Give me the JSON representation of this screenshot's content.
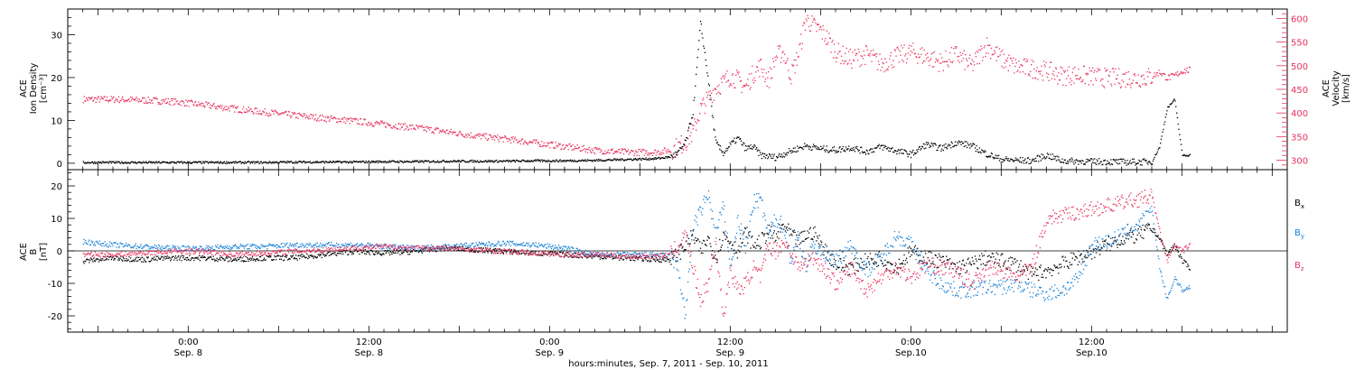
{
  "chart_data": [
    {
      "type": "scatter",
      "panel": "plasma",
      "left_axis": {
        "label_lines": [
          "ACE",
          "Ion Density",
          "[cm⁻³]"
        ],
        "ylim": [
          -1.5,
          36
        ],
        "ticks": [
          0,
          10,
          20,
          30
        ],
        "tick_labels": [
          "0",
          "10",
          "20",
          "30"
        ]
      },
      "right_axis": {
        "label_lines": [
          "ACE",
          "Velocity",
          "[km/s]"
        ],
        "ylim": [
          280,
          620
        ],
        "ticks": [
          300,
          350,
          400,
          450,
          500,
          550,
          600
        ],
        "tick_labels": [
          "300",
          "350",
          "400",
          "450",
          "500",
          "550",
          "600"
        ],
        "color": "#e8305f"
      },
      "series": [
        {
          "key": "density",
          "axis": "left",
          "color": "#000000",
          "x_hours": [
            -14,
            -10,
            -6,
            -2,
            2,
            6,
            10,
            14,
            18,
            22,
            26,
            30,
            34,
            38,
            42,
            46,
            50,
            54,
            58,
            62,
            64,
            65,
            66,
            67,
            68,
            69,
            70,
            71,
            72,
            73,
            74,
            75,
            76,
            78,
            80,
            82,
            84,
            86,
            88,
            90,
            92,
            94,
            96,
            98,
            100,
            102,
            104,
            106,
            108,
            110,
            112,
            114,
            116,
            118,
            120,
            122,
            124,
            126,
            128,
            129,
            130,
            131,
            132,
            133
          ],
          "values": [
            0.3,
            0.3,
            0.3,
            0.3,
            0.3,
            0.3,
            0.3,
            0.4,
            0.4,
            0.4,
            0.5,
            0.5,
            0.6,
            0.6,
            0.6,
            0.7,
            0.7,
            0.8,
            1.0,
            1.2,
            1.6,
            2.5,
            5,
            12,
            33,
            20,
            5,
            2.5,
            4.5,
            6,
            3.5,
            4,
            2,
            1.5,
            3,
            4.2,
            3.5,
            3.2,
            3.8,
            2.8,
            4,
            3,
            2.2,
            4.5,
            3.6,
            5,
            4.2,
            2.3,
            1.0,
            0.8,
            0.7,
            2,
            0.7,
            0.6,
            0.5,
            0.5,
            0.4,
            0.4,
            0.5,
            4,
            13,
            15,
            2,
            2
          ]
        },
        {
          "key": "velocity",
          "axis": "right",
          "color": "#e8305f",
          "x_hours": [
            -14,
            -10,
            -6,
            -2,
            2,
            6,
            10,
            14,
            18,
            22,
            26,
            30,
            34,
            38,
            42,
            46,
            50,
            54,
            58,
            62,
            64,
            65,
            66,
            67,
            68,
            69,
            70,
            71,
            72,
            73,
            74,
            75,
            76,
            77,
            78,
            79,
            80,
            81,
            82,
            83,
            84,
            85,
            86,
            88,
            90,
            92,
            94,
            96,
            98,
            100,
            102,
            104,
            106,
            108,
            110,
            112,
            114,
            116,
            118,
            120,
            122,
            124,
            126,
            128,
            129,
            130,
            131,
            132,
            133
          ],
          "values": [
            430,
            430,
            428,
            425,
            418,
            410,
            403,
            396,
            390,
            384,
            377,
            370,
            362,
            353,
            346,
            338,
            330,
            322,
            318,
            318,
            322,
            330,
            340,
            360,
            410,
            430,
            455,
            465,
            480,
            470,
            455,
            485,
            500,
            470,
            520,
            530,
            480,
            525,
            600,
            585,
            575,
            555,
            530,
            515,
            525,
            505,
            520,
            530,
            520,
            508,
            525,
            500,
            545,
            515,
            498,
            495,
            490,
            480,
            482,
            478,
            475,
            475,
            475,
            478,
            488,
            475,
            480,
            490,
            492
          ]
        }
      ]
    },
    {
      "type": "scatter",
      "panel": "magnetic field",
      "left_axis": {
        "label_lines": [
          "ACE",
          "B",
          "[nT]"
        ],
        "ylim": [
          -25,
          25
        ],
        "ticks": [
          -20,
          -10,
          0,
          10,
          20
        ],
        "tick_labels": [
          "-20",
          "-10",
          "0",
          "10",
          "20"
        ]
      },
      "series": [
        {
          "key": "Bx",
          "name": "Bx",
          "color": "#000000",
          "x_hours": [
            -14,
            -10,
            -6,
            -2,
            2,
            6,
            10,
            14,
            18,
            22,
            26,
            30,
            34,
            38,
            42,
            46,
            50,
            54,
            58,
            62,
            64,
            65,
            66,
            67,
            68,
            69,
            70,
            71,
            72,
            73,
            74,
            75,
            76,
            77,
            78,
            79,
            80,
            81,
            82,
            83,
            84,
            86,
            88,
            90,
            92,
            94,
            96,
            98,
            100,
            102,
            104,
            106,
            108,
            110,
            112,
            114,
            116,
            118,
            120,
            122,
            124,
            126,
            128,
            129,
            130,
            131,
            132,
            133
          ],
          "values": [
            -3,
            -2,
            -2.5,
            -2,
            -2,
            -2.5,
            -2,
            -2,
            -1,
            0,
            -0.5,
            0,
            1,
            0.5,
            0,
            -0.5,
            -1,
            -1.5,
            -2,
            -2.5,
            -2.5,
            -1,
            2,
            5,
            0,
            4,
            -2,
            5,
            3,
            0,
            6,
            2,
            3,
            6,
            4,
            8,
            5,
            3,
            5,
            6,
            2,
            -4,
            -5,
            -3,
            -2,
            -5,
            0,
            -2,
            -3,
            -5,
            -4,
            -2,
            -3,
            -4,
            -7,
            -6,
            -4,
            -2,
            0,
            2,
            4,
            5,
            7,
            4,
            -1,
            2,
            -3,
            -5
          ]
        },
        {
          "key": "By",
          "name": "By",
          "color": "#1a82d8",
          "x_hours": [
            -14,
            -10,
            -6,
            -2,
            2,
            6,
            10,
            14,
            18,
            22,
            26,
            30,
            34,
            38,
            42,
            46,
            50,
            54,
            58,
            62,
            64,
            65,
            66,
            67,
            68,
            69,
            70,
            71,
            72,
            73,
            74,
            75,
            76,
            77,
            78,
            79,
            80,
            81,
            82,
            83,
            84,
            86,
            88,
            90,
            92,
            94,
            96,
            98,
            100,
            102,
            104,
            106,
            108,
            110,
            112,
            114,
            116,
            118,
            120,
            122,
            124,
            126,
            128,
            129,
            130,
            131,
            132,
            133
          ],
          "values": [
            3,
            2,
            1.5,
            1,
            1,
            1.5,
            1.5,
            2,
            2,
            2,
            1.5,
            1,
            1.5,
            2,
            2.5,
            2,
            1,
            -1,
            -1,
            -1,
            -1.5,
            -5,
            -20,
            8,
            12,
            18,
            5,
            14,
            -5,
            10,
            0,
            15,
            16,
            5,
            10,
            8,
            -3,
            5,
            -5,
            2,
            0,
            -3,
            2,
            -6,
            -2,
            5,
            2,
            -6,
            -10,
            -12,
            -12,
            -11,
            -11,
            -10,
            -12,
            -13,
            -12,
            -9,
            2,
            3,
            5,
            8,
            12,
            -5,
            -15,
            -8,
            -12,
            -11
          ]
        },
        {
          "key": "Bz",
          "name": "Bz",
          "color": "#e8305f",
          "x_hours": [
            -14,
            -10,
            -6,
            -2,
            2,
            6,
            10,
            14,
            18,
            22,
            26,
            30,
            34,
            38,
            42,
            46,
            50,
            54,
            58,
            62,
            64,
            65,
            66,
            67,
            68,
            69,
            70,
            71,
            72,
            73,
            74,
            75,
            76,
            77,
            78,
            79,
            80,
            81,
            82,
            83,
            84,
            86,
            88,
            90,
            92,
            94,
            96,
            98,
            100,
            102,
            104,
            106,
            108,
            110,
            112,
            114,
            116,
            118,
            120,
            122,
            124,
            126,
            128,
            129,
            130,
            131,
            132,
            133
          ],
          "values": [
            -1,
            -1,
            -0.5,
            0,
            0,
            -1,
            -0.5,
            0,
            0.5,
            1,
            1.5,
            1,
            1,
            0.5,
            0,
            -0.5,
            -1,
            -1,
            -1.5,
            -1.5,
            -1,
            2,
            5,
            -5,
            -15,
            -10,
            3,
            -20,
            -6,
            -12,
            -10,
            -5,
            -8,
            2,
            0,
            3,
            0,
            -5,
            -3,
            -2,
            -4,
            -10,
            -5,
            -12,
            -8,
            -5,
            -8,
            -4,
            -5,
            -6,
            -10,
            -5,
            -6,
            -8,
            -5,
            10,
            11,
            12,
            13,
            14,
            15,
            16,
            17,
            6,
            -3,
            2,
            0,
            2
          ]
        }
      ]
    }
  ],
  "x_axis": {
    "range_hours": [
      -16,
      146
    ],
    "ticks": [
      {
        "hours": 0,
        "time": "0:00",
        "date": "Sep. 8"
      },
      {
        "hours": 24,
        "time": "12:00",
        "date": "Sep. 8"
      },
      {
        "hours": 48,
        "time": "0:00",
        "date": "Sep. 9"
      },
      {
        "hours": 72,
        "time": "12:00",
        "date": "Sep. 9"
      },
      {
        "hours": 96,
        "time": "0:00",
        "date": "Sep.10"
      },
      {
        "hours": 120,
        "time": "12:00",
        "date": "Sep.10"
      }
    ],
    "label": "hours:minutes, Sep.  7, 2011 - Sep. 10, 2011"
  },
  "legend": [
    {
      "base": "B",
      "sub": "x",
      "color": "#000000"
    },
    {
      "base": "B",
      "sub": "y",
      "color": "#1a82d8"
    },
    {
      "base": "B",
      "sub": "z",
      "color": "#e8305f"
    }
  ]
}
